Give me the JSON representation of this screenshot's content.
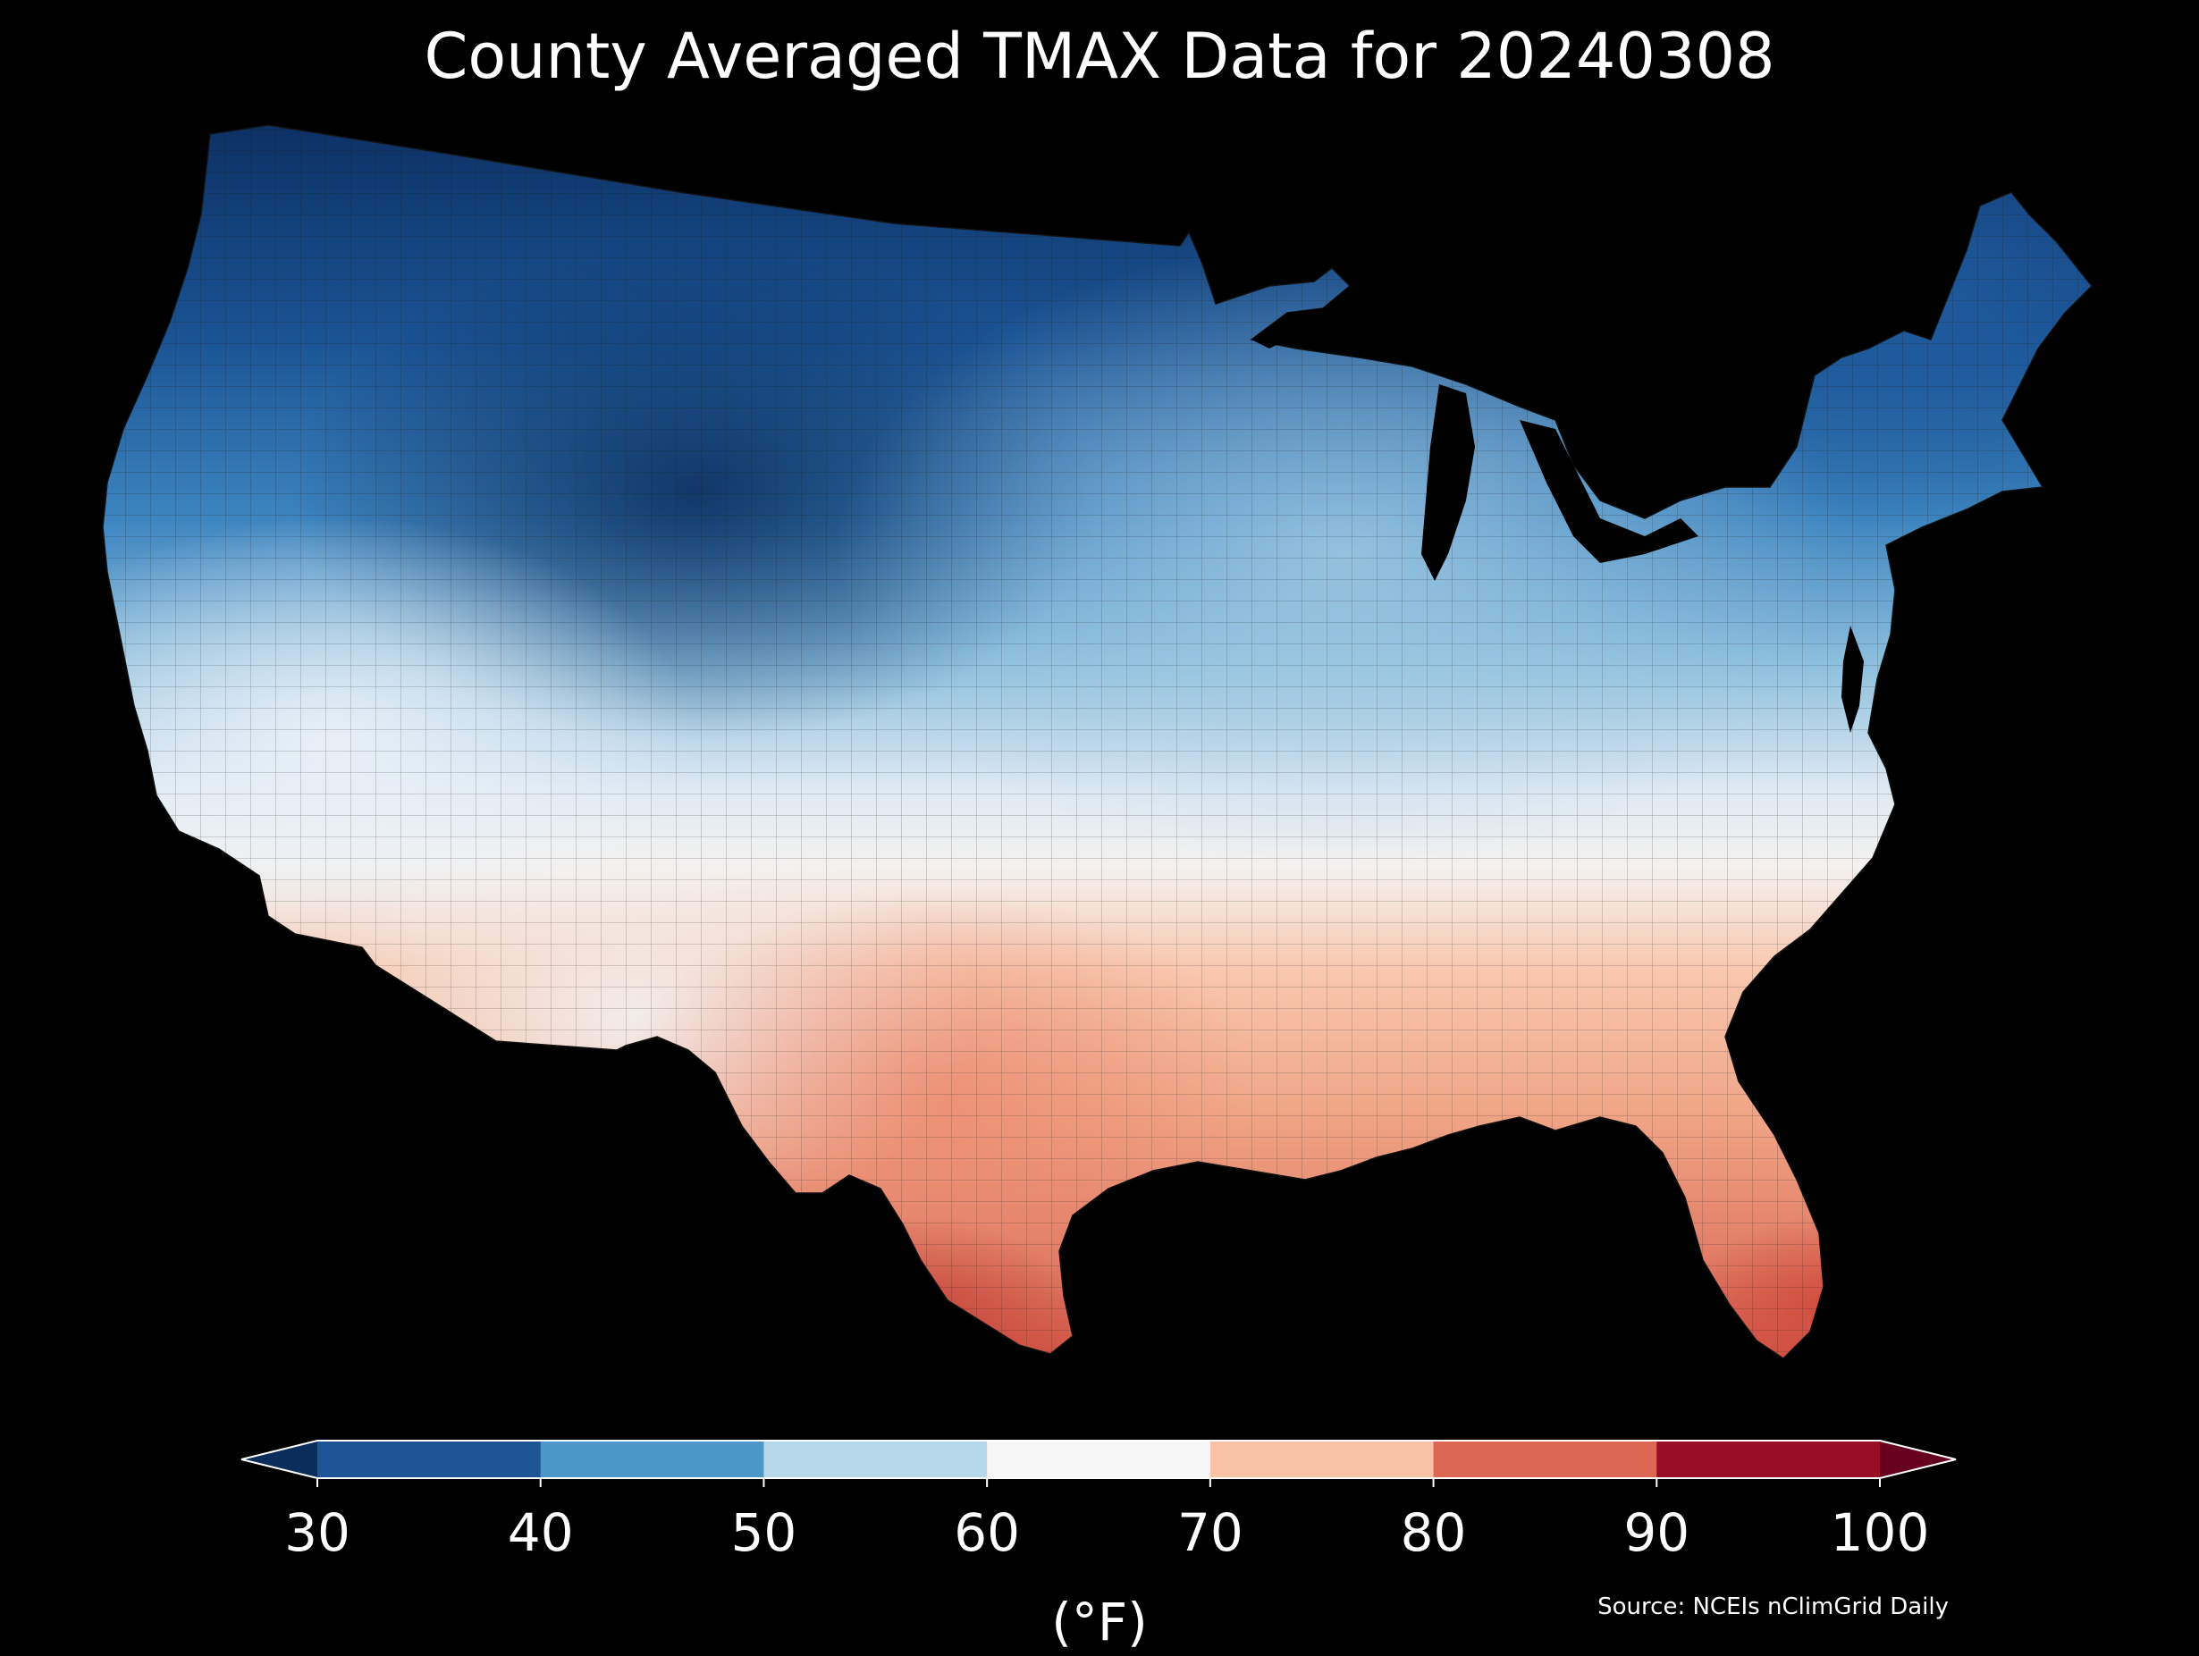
{
  "title": "County Averaged TMAX Data for 20240308",
  "colorbar": {
    "ticks": [
      "30",
      "40",
      "50",
      "60",
      "70",
      "80",
      "90",
      "100"
    ],
    "bins": [
      {
        "from": 30,
        "to": 40,
        "color": "#1d5597"
      },
      {
        "from": 40,
        "to": 50,
        "color": "#4b98c8"
      },
      {
        "from": 50,
        "to": 60,
        "color": "#b7d7ea"
      },
      {
        "from": 60,
        "to": 70,
        "color": "#f6f6f6"
      },
      {
        "from": 70,
        "to": 80,
        "color": "#f9c1a5"
      },
      {
        "from": 80,
        "to": 90,
        "color": "#dc6753"
      },
      {
        "from": 90,
        "to": 100,
        "color": "#970e25"
      }
    ],
    "under_color": "#0b2d5c",
    "over_color": "#67001f",
    "units": "(°F)"
  },
  "source": "Source: NCEIs nClimGrid Daily",
  "colors": {
    "background": "#000000",
    "county_border": "#222222"
  }
}
